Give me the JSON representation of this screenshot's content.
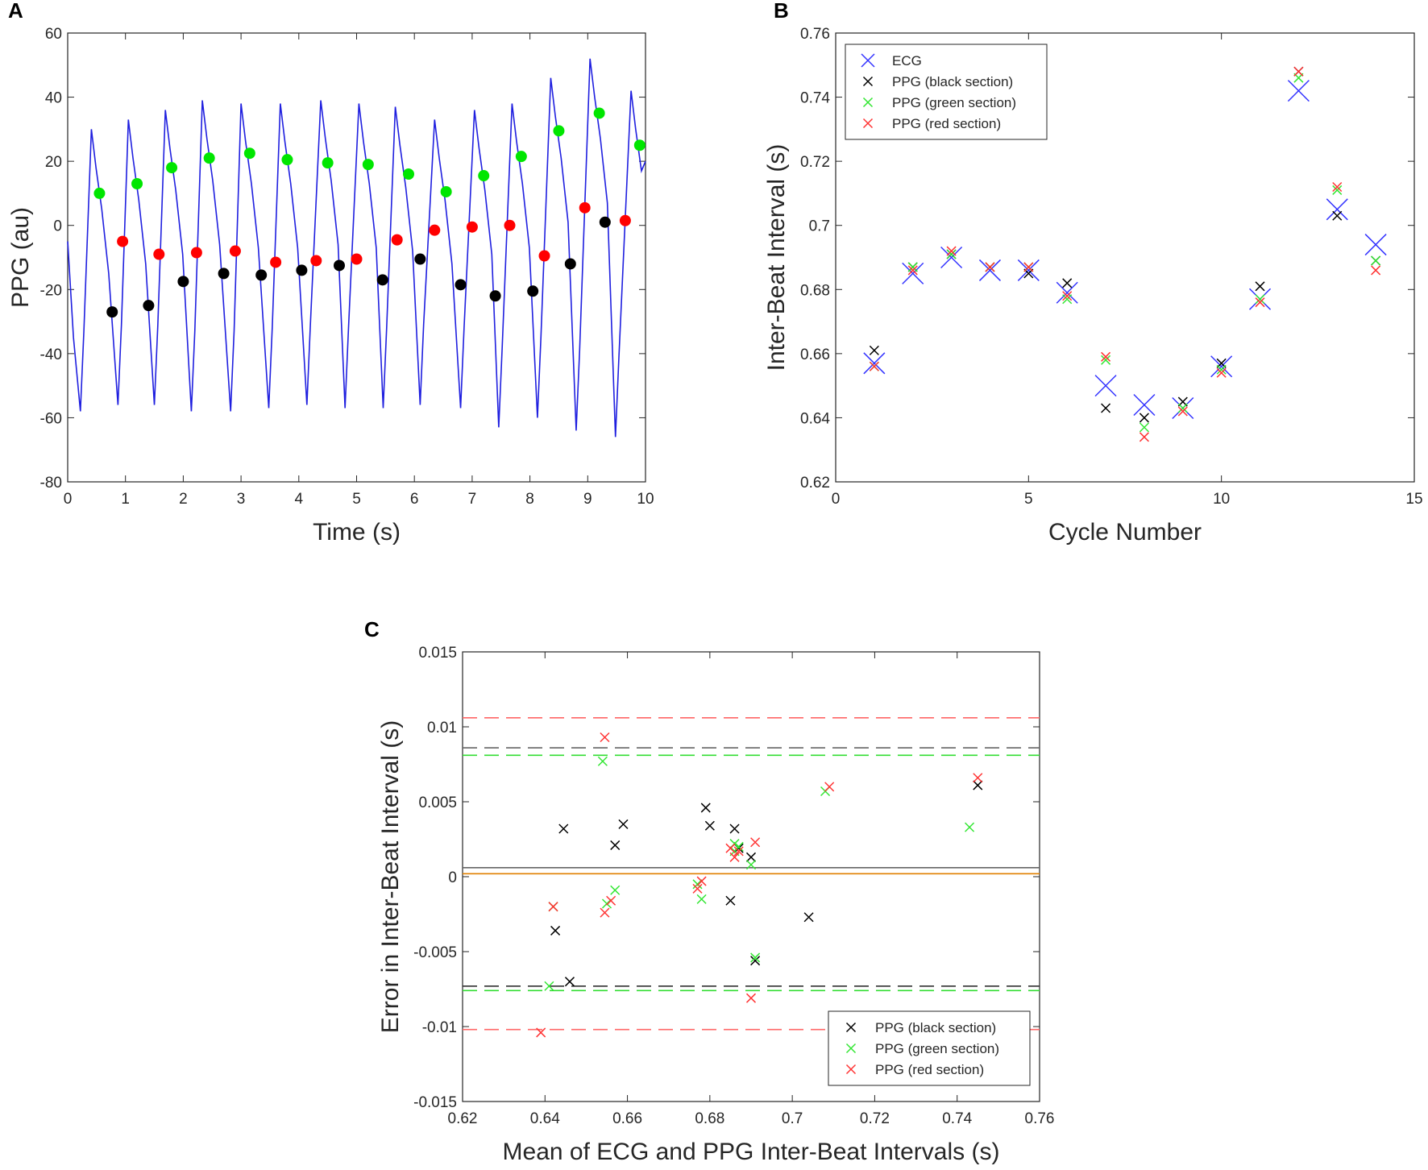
{
  "chart_data": [
    {
      "type": "line",
      "panel_label": "A",
      "xlabel": "Time (s)",
      "ylabel": "PPG (au)",
      "xlim": [
        0,
        10
      ],
      "xticks": [
        0,
        1,
        2,
        3,
        4,
        5,
        6,
        7,
        8,
        9,
        10
      ],
      "ylim": [
        -80,
        60
      ],
      "yticks": [
        -80,
        -60,
        -40,
        -20,
        0,
        20,
        40,
        60
      ],
      "series": [
        {
          "color": "#1f1fdf",
          "marker": "line",
          "x": [
            0,
            0.1,
            0.22,
            0.28,
            0.41,
            0.49,
            0.59,
            0.71,
            0.87,
            0.93,
            1.05,
            1.13,
            1.23,
            1.35,
            1.5,
            1.56,
            1.69,
            1.77,
            1.87,
            1.99,
            2.14,
            2.2,
            2.33,
            2.41,
            2.51,
            2.63,
            2.82,
            2.88,
            3.0,
            3.08,
            3.18,
            3.3,
            3.48,
            3.54,
            3.68,
            3.76,
            3.86,
            3.98,
            4.14,
            4.2,
            4.38,
            4.46,
            4.56,
            4.68,
            4.8,
            4.86,
            5.04,
            5.12,
            5.22,
            5.34,
            5.46,
            5.52,
            5.67,
            5.75,
            5.85,
            5.97,
            6.1,
            6.16,
            6.35,
            6.43,
            6.53,
            6.65,
            6.8,
            6.86,
            7.04,
            7.12,
            7.22,
            7.34,
            7.46,
            7.52,
            7.69,
            7.77,
            7.87,
            7.99,
            8.13,
            8.19,
            8.36,
            8.44,
            8.54,
            8.66,
            8.8,
            8.86,
            9.04,
            9.12,
            9.22,
            9.34,
            9.48,
            9.54,
            9.75,
            9.83,
            9.93,
            10
          ],
          "values": [
            -5,
            -35,
            -58,
            -33,
            30,
            18,
            5,
            -15,
            -56,
            -31,
            33,
            21,
            8,
            -12,
            -56,
            -31,
            36,
            24,
            11,
            -9,
            -58,
            -33,
            39,
            27,
            14,
            -6,
            -58,
            -33,
            38,
            26,
            13,
            -7,
            -57,
            -32,
            38,
            26,
            13,
            -7,
            -56,
            -31,
            39,
            27,
            14,
            -6,
            -57,
            -32,
            38,
            26,
            13,
            -7,
            -57,
            -32,
            37,
            25,
            12,
            -8,
            -56,
            -31,
            33,
            21,
            8,
            -12,
            -57,
            -32,
            36,
            24,
            11,
            -9,
            -63,
            -38,
            38,
            26,
            13,
            -7,
            -60,
            -35,
            46,
            34,
            21,
            1,
            -64,
            -39,
            52,
            40,
            27,
            7,
            -66,
            -41,
            42,
            30,
            17,
            20
          ]
        },
        {
          "color": "#00e600",
          "marker": "circle",
          "x": [
            0.55,
            1.2,
            1.8,
            2.45,
            3.15,
            3.8,
            4.5,
            5.2,
            5.9,
            6.55,
            7.2,
            7.85,
            8.5,
            9.2,
            9.9
          ],
          "values": [
            10,
            13,
            18,
            21,
            22.5,
            20.5,
            19.5,
            19,
            16,
            10.5,
            15.5,
            21.5,
            29.5,
            35,
            25
          ]
        },
        {
          "color": "#ff0000",
          "marker": "circle",
          "x": [
            0.95,
            1.58,
            2.23,
            2.9,
            3.6,
            4.3,
            5.0,
            5.7,
            6.35,
            7.0,
            7.65,
            8.25,
            8.95,
            9.65
          ],
          "values": [
            -5,
            -9,
            -8.5,
            -8,
            -11.5,
            -11,
            -10.5,
            -4.5,
            -1.5,
            -0.5,
            0,
            -9.5,
            5.5,
            1.5
          ]
        },
        {
          "color": "#000000",
          "marker": "circle",
          "x": [
            0.77,
            1.4,
            2.0,
            2.7,
            3.35,
            4.05,
            4.7,
            5.45,
            6.1,
            6.8,
            7.4,
            8.05,
            8.7,
            9.3
          ],
          "values": [
            -27,
            -25,
            -17.5,
            -15,
            -15.5,
            -14,
            -12.5,
            -17,
            -10.5,
            -18.5,
            -22,
            -20.5,
            -12,
            1
          ]
        }
      ]
    },
    {
      "type": "scatter",
      "panel_label": "B",
      "xlabel": "Cycle Number",
      "ylabel": "Inter-Beat Interval (s)",
      "xlim": [
        0,
        15
      ],
      "xticks": [
        0,
        5,
        10,
        15
      ],
      "ylim": [
        0.62,
        0.76
      ],
      "yticks": [
        0.62,
        0.64,
        0.66,
        0.68,
        0.7,
        0.72,
        0.74,
        0.76
      ],
      "legend": "upper left",
      "x": [
        1,
        2,
        3,
        4,
        5,
        6,
        7,
        8,
        9,
        10,
        11,
        12,
        13,
        14
      ],
      "series": [
        {
          "name": "ECG",
          "color": "#3333ff",
          "marker": "x",
          "marker_size": 26,
          "values": [
            0.657,
            0.685,
            0.69,
            0.686,
            0.686,
            0.679,
            0.65,
            0.644,
            0.643,
            0.656,
            0.677,
            0.742,
            0.705,
            0.694
          ]
        },
        {
          "name": "PPG (black section)",
          "color": "#000000",
          "marker": "x",
          "marker_size": 11,
          "values": [
            0.661,
            0.687,
            0.691,
            0.687,
            0.685,
            0.682,
            0.643,
            0.64,
            0.645,
            0.657,
            0.681,
            0.748,
            0.703,
            0.689
          ]
        },
        {
          "name": "PPG (green section)",
          "color": "#33e633",
          "marker": "x",
          "marker_size": 11,
          "values": [
            0.656,
            0.687,
            0.691,
            0.687,
            0.687,
            0.677,
            0.658,
            0.637,
            0.643,
            0.655,
            0.677,
            0.746,
            0.711,
            0.689
          ]
        },
        {
          "name": "PPG (red section)",
          "color": "#ff3333",
          "marker": "x",
          "marker_size": 11,
          "values": [
            0.656,
            0.686,
            0.692,
            0.687,
            0.687,
            0.678,
            0.659,
            0.634,
            0.642,
            0.654,
            0.676,
            0.748,
            0.712,
            0.686
          ]
        }
      ]
    },
    {
      "type": "scatter",
      "panel_label": "C",
      "xlabel": "Mean of ECG and PPG Inter-Beat Intervals (s)",
      "ylabel": "Error in Inter-Beat Interval (s)",
      "xlim": [
        0.62,
        0.76
      ],
      "xticks": [
        0.62,
        0.64,
        0.66,
        0.68,
        0.7,
        0.72,
        0.74,
        0.76
      ],
      "ylim": [
        -0.015,
        0.015
      ],
      "yticks": [
        -0.015,
        -0.01,
        -0.005,
        0,
        0.005,
        0.01,
        0.015
      ],
      "legend": "lower right",
      "reference_lines": [
        {
          "color": "#ff6666",
          "style": "dashed",
          "y": 0.0106
        },
        {
          "color": "#666666",
          "style": "dashed",
          "y": 0.0086
        },
        {
          "color": "#33dd33",
          "style": "dashed",
          "y": 0.0081
        },
        {
          "color": "#666666",
          "style": "solid",
          "y": 0.0006
        },
        {
          "color": "#e08000",
          "style": "solid",
          "y": 0.0002
        },
        {
          "color": "#333333",
          "style": "dashed",
          "y": -0.0073
        },
        {
          "color": "#33dd33",
          "style": "dashed",
          "y": -0.0076
        },
        {
          "color": "#ff6666",
          "style": "dashed",
          "y": -0.0102
        }
      ],
      "series": [
        {
          "name": "PPG (black section)",
          "color": "#000000",
          "marker": "x",
          "marker_size": 11,
          "x": [
            0.6445,
            0.6425,
            0.646,
            0.657,
            0.659,
            0.679,
            0.68,
            0.685,
            0.686,
            0.687,
            0.69,
            0.691,
            0.704,
            0.745
          ],
          "values": [
            0.0032,
            -0.0036,
            -0.007,
            0.0021,
            0.0035,
            0.0046,
            0.0034,
            -0.0016,
            0.0032,
            0.0019,
            0.0013,
            -0.0056,
            -0.0027,
            0.0061
          ]
        },
        {
          "name": "PPG (green section)",
          "color": "#33e633",
          "marker": "x",
          "marker_size": 11,
          "x": [
            0.641,
            0.642,
            0.654,
            0.655,
            0.657,
            0.677,
            0.678,
            0.686,
            0.687,
            0.686,
            0.69,
            0.691,
            0.708,
            0.743
          ],
          "values": [
            -0.0073,
            -0.002,
            0.0077,
            -0.0018,
            -0.0009,
            -0.0005,
            -0.0015,
            0.0022,
            0.002,
            0.0017,
            0.0008,
            -0.0054,
            0.0057,
            0.0033
          ]
        },
        {
          "name": "PPG (red section)",
          "color": "#ff3333",
          "marker": "x",
          "marker_size": 11,
          "x": [
            0.639,
            0.642,
            0.6545,
            0.6545,
            0.656,
            0.677,
            0.678,
            0.685,
            0.686,
            0.687,
            0.69,
            0.691,
            0.709,
            0.745
          ],
          "values": [
            -0.0104,
            -0.002,
            0.0093,
            -0.0024,
            -0.0016,
            -0.0008,
            -0.0003,
            0.0019,
            0.0013,
            0.0017,
            -0.0081,
            0.0023,
            0.006,
            0.0066
          ]
        }
      ]
    }
  ]
}
